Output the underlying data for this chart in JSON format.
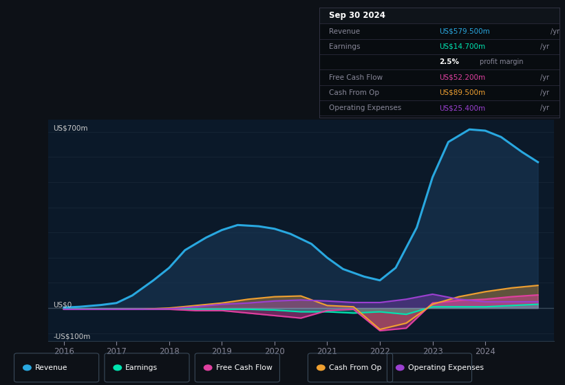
{
  "bg_color": "#0d1117",
  "plot_bg_color": "#0b1929",
  "grid_color": "#1a2a3a",
  "ylim": [
    -130,
    750
  ],
  "xlim": [
    2015.7,
    2025.3
  ],
  "yticks": [
    -100,
    0,
    100,
    200,
    300,
    400,
    500,
    600,
    700
  ],
  "xticks": [
    2016,
    2017,
    2018,
    2019,
    2020,
    2021,
    2022,
    2023,
    2024
  ],
  "revenue_color": "#29a8e0",
  "earnings_color": "#00e5b0",
  "fcf_color": "#e040a0",
  "cashfromop_color": "#f0a030",
  "opex_color": "#9b40d0",
  "revenue_fill_color": "#1a3a5c",
  "lines": {
    "revenue": {
      "x": [
        2016.0,
        2016.3,
        2016.7,
        2017.0,
        2017.3,
        2017.7,
        2018.0,
        2018.3,
        2018.7,
        2019.0,
        2019.3,
        2019.7,
        2020.0,
        2020.3,
        2020.7,
        2021.0,
        2021.3,
        2021.7,
        2022.0,
        2022.3,
        2022.7,
        2023.0,
        2023.3,
        2023.7,
        2024.0,
        2024.3,
        2024.7,
        2025.0
      ],
      "y": [
        2,
        5,
        12,
        20,
        50,
        110,
        160,
        230,
        280,
        310,
        330,
        325,
        315,
        295,
        255,
        200,
        155,
        125,
        110,
        160,
        320,
        520,
        660,
        710,
        705,
        680,
        620,
        580
      ]
    },
    "earnings": {
      "x": [
        2016.0,
        2016.5,
        2017.0,
        2017.5,
        2018.0,
        2018.5,
        2019.0,
        2019.5,
        2020.0,
        2020.5,
        2021.0,
        2021.5,
        2022.0,
        2022.5,
        2023.0,
        2023.5,
        2024.0,
        2024.5,
        2025.0
      ],
      "y": [
        -3,
        -3,
        -4,
        -5,
        -5,
        -5,
        -5,
        -5,
        -8,
        -15,
        -15,
        -20,
        -15,
        -25,
        5,
        5,
        5,
        10,
        15
      ]
    },
    "fcf": {
      "x": [
        2016.0,
        2016.5,
        2017.0,
        2017.5,
        2018.0,
        2018.5,
        2019.0,
        2019.5,
        2020.0,
        2020.5,
        2021.0,
        2021.5,
        2022.0,
        2022.5,
        2023.0,
        2023.5,
        2024.0,
        2024.5,
        2025.0
      ],
      "y": [
        -5,
        -5,
        -5,
        -5,
        -5,
        -10,
        -10,
        -20,
        -30,
        -40,
        -10,
        -5,
        -90,
        -80,
        20,
        30,
        35,
        45,
        52
      ]
    },
    "cashfromop": {
      "x": [
        2016.0,
        2016.5,
        2017.0,
        2017.5,
        2018.0,
        2018.5,
        2019.0,
        2019.5,
        2020.0,
        2020.5,
        2021.0,
        2021.5,
        2022.0,
        2022.5,
        2023.0,
        2023.5,
        2024.0,
        2024.5,
        2025.0
      ],
      "y": [
        -5,
        -5,
        -5,
        -5,
        0,
        10,
        20,
        35,
        45,
        48,
        10,
        5,
        -85,
        -60,
        15,
        45,
        65,
        80,
        90
      ]
    },
    "opex": {
      "x": [
        2016.0,
        2016.5,
        2017.0,
        2017.5,
        2018.0,
        2018.5,
        2019.0,
        2019.5,
        2020.0,
        2020.5,
        2021.0,
        2021.5,
        2022.0,
        2022.5,
        2023.0,
        2023.5,
        2024.0,
        2024.5,
        2025.0
      ],
      "y": [
        -5,
        -5,
        -5,
        -5,
        -3,
        5,
        15,
        20,
        28,
        32,
        28,
        22,
        22,
        35,
        55,
        35,
        25,
        25,
        25
      ]
    }
  },
  "info_box": {
    "date": "Sep 30 2024",
    "rows": [
      {
        "label": "Revenue",
        "value": "US$579.500m",
        "value_color": "#29a8e0",
        "suffix": " /yr"
      },
      {
        "label": "Earnings",
        "value": "US$14.700m",
        "value_color": "#00e5b0",
        "suffix": " /yr"
      },
      {
        "label": "",
        "value": "2.5%",
        "value_color": "#ffffff",
        "suffix": " profit margin",
        "bold_value": true
      },
      {
        "label": "Free Cash Flow",
        "value": "US$52.200m",
        "value_color": "#e040a0",
        "suffix": " /yr"
      },
      {
        "label": "Cash From Op",
        "value": "US$89.500m",
        "value_color": "#f0a030",
        "suffix": " /yr"
      },
      {
        "label": "Operating Expenses",
        "value": "US$25.400m",
        "value_color": "#9b40d0",
        "suffix": " /yr"
      }
    ]
  },
  "legend": [
    {
      "label": "Revenue",
      "color": "#29a8e0"
    },
    {
      "label": "Earnings",
      "color": "#00e5b0"
    },
    {
      "label": "Free Cash Flow",
      "color": "#e040a0"
    },
    {
      "label": "Cash From Op",
      "color": "#f0a030"
    },
    {
      "label": "Operating Expenses",
      "color": "#9b40d0"
    }
  ]
}
